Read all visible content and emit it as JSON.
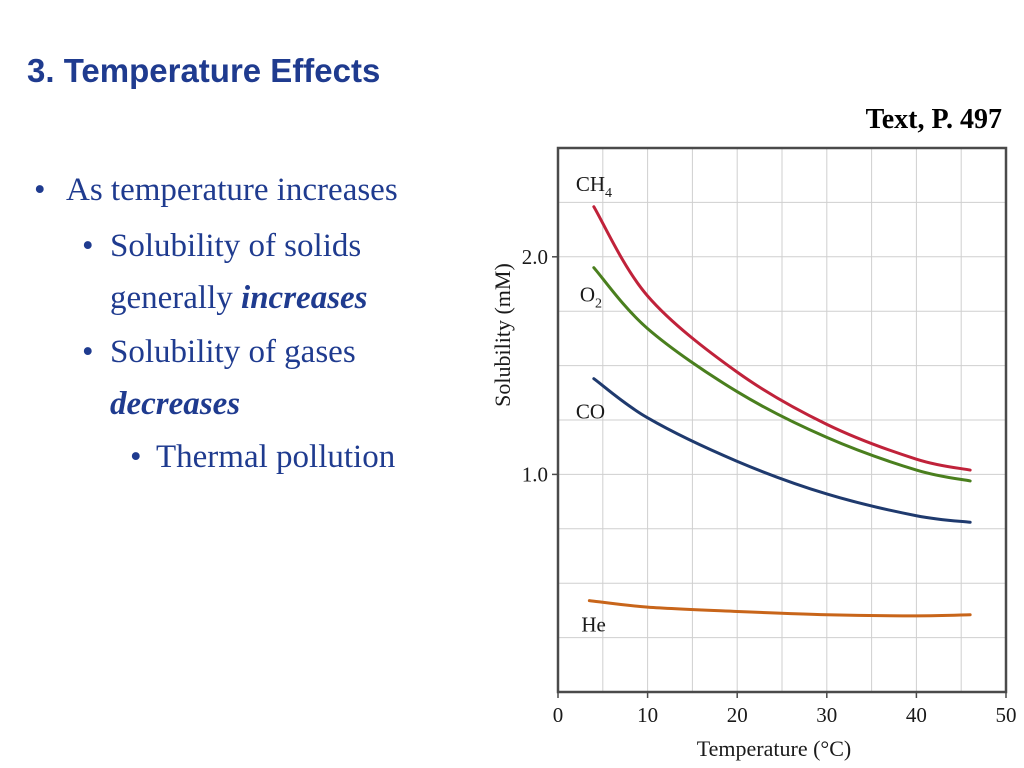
{
  "slide": {
    "title": "3. Temperature Effects",
    "source": "Text, P. 497"
  },
  "bullets": {
    "level1": "As temperature increases",
    "solids_prefix": "Solubility of solids generally ",
    "solids_emph": "increases",
    "gases_prefix": "Solubility of gases ",
    "gases_emph": "decreases",
    "level3": "Thermal pollution",
    "bullet_glyph": "•"
  },
  "colors": {
    "title": "#1f3b8f",
    "bullet_text": "#1f3b8f",
    "CH4": "#c0223a",
    "O2": "#4a7f1e",
    "CO": "#1f3a6e",
    "He": "#c8651a"
  },
  "chart_data": {
    "type": "line",
    "xlabel": "Temperature (°C)",
    "ylabel": "Solubility (mM)",
    "xlim": [
      0,
      50
    ],
    "ylim": [
      0,
      2.5
    ],
    "x_ticks": [
      0,
      10,
      20,
      30,
      40,
      50
    ],
    "y_ticks": [
      1.0,
      2.0
    ],
    "y_tick_labels": [
      "1.0",
      "2.0"
    ],
    "grid": true,
    "series": [
      {
        "name": "CH4",
        "label_base": "CH",
        "label_sub": "4",
        "color": "#c0223a",
        "x": [
          4,
          10,
          20,
          30,
          40,
          46
        ],
        "y": [
          2.23,
          1.82,
          1.47,
          1.23,
          1.07,
          1.02
        ]
      },
      {
        "name": "O2",
        "label_base": "O",
        "label_sub": "2",
        "color": "#4a7f1e",
        "x": [
          4,
          10,
          20,
          30,
          40,
          46
        ],
        "y": [
          1.95,
          1.67,
          1.38,
          1.17,
          1.02,
          0.97
        ]
      },
      {
        "name": "CO",
        "label_base": "CO",
        "label_sub": "",
        "color": "#1f3a6e",
        "x": [
          4,
          10,
          20,
          30,
          40,
          46
        ],
        "y": [
          1.44,
          1.26,
          1.06,
          0.91,
          0.81,
          0.78
        ]
      },
      {
        "name": "He",
        "label_base": "He",
        "label_sub": "",
        "color": "#c8651a",
        "x": [
          3.5,
          10,
          20,
          30,
          40,
          46
        ],
        "y": [
          0.42,
          0.39,
          0.37,
          0.355,
          0.35,
          0.355
        ]
      }
    ]
  }
}
